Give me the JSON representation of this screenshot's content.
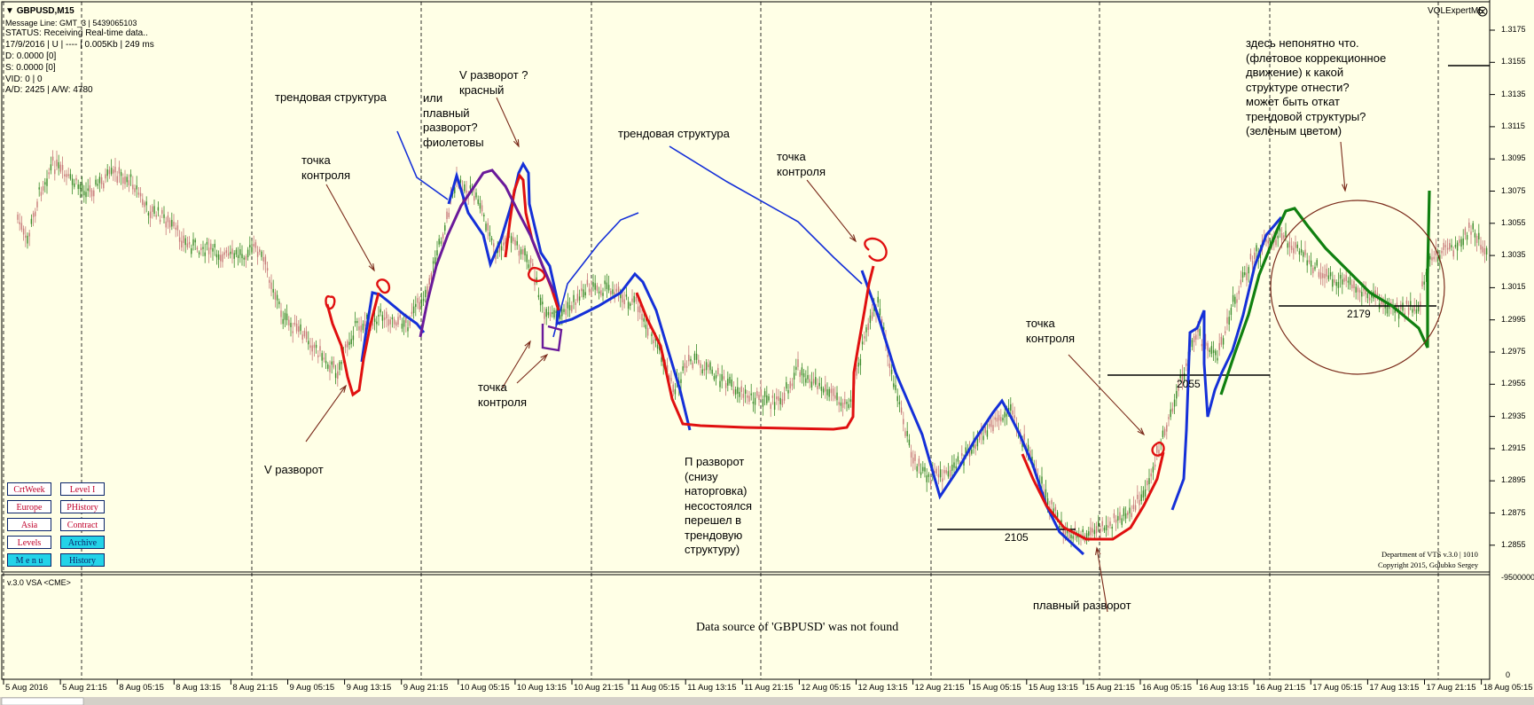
{
  "window": {
    "title": "GBPUSD,M15",
    "indicator_name": "VQLExpertME"
  },
  "info_panel": {
    "message_line": "Message Line: GMT_3 | 5439065103",
    "status": "STATUS:  Receiving Real-time data..",
    "date_line": "17/9/2016 | U | ---- | 0.005Kb | 249 ms",
    "d_line": "D: 0.0000  [0]",
    "s_line": "S: 0.0000  [0]",
    "vd_line": "VID: 0 | 0",
    "ad_line": "A/D: 2425 | A/W: 4780"
  },
  "buttons": [
    {
      "label": "CrtWeek",
      "style": "white"
    },
    {
      "label": "Level I",
      "style": "white"
    },
    {
      "label": "Europe",
      "style": "white"
    },
    {
      "label": "PHistory",
      "style": "white"
    },
    {
      "label": "Asia",
      "style": "white"
    },
    {
      "label": "Contract",
      "style": "white"
    },
    {
      "label": "Levels",
      "style": "white"
    },
    {
      "label": "Archive",
      "style": "cyan"
    },
    {
      "label": "M e n u",
      "style": "cyan"
    },
    {
      "label": "History",
      "style": "cyan"
    }
  ],
  "y_axis": {
    "ticks": [
      "1.3175",
      "1.3155",
      "1.3135",
      "1.3115",
      "1.3095",
      "1.3075",
      "1.3055",
      "1.3035",
      "1.3015",
      "1.2995",
      "1.2975",
      "1.2955",
      "1.2935",
      "1.2915",
      "1.2895",
      "1.2875",
      "1.2855"
    ],
    "sub_ticks": [
      "-9500000",
      "0"
    ]
  },
  "x_axis": {
    "ticks": [
      "5 Aug 2016",
      "5 Aug 21:15",
      "8 Aug 05:15",
      "8 Aug 13:15",
      "8 Aug 21:15",
      "9 Aug 05:15",
      "9 Aug 13:15",
      "9 Aug 21:15",
      "10 Aug 05:15",
      "10 Aug 13:15",
      "10 Aug 21:15",
      "11 Aug 05:15",
      "11 Aug 13:15",
      "11 Aug 21:15",
      "12 Aug 05:15",
      "12 Aug 13:15",
      "12 Aug 21:15",
      "15 Aug 05:15",
      "15 Aug 13:15",
      "15 Aug 21:15",
      "16 Aug 05:15",
      "16 Aug 13:15",
      "16 Aug 21:15",
      "17 Aug 05:15",
      "17 Aug 13:15",
      "17 Aug 21:15",
      "18 Aug 05:15"
    ]
  },
  "annotations": {
    "trend_structure_1": "трендовая структура",
    "or_smooth": "или\nплавный\nразворот?\nфиолетовы",
    "v_reversal_q": "V разворот ?\nкрасный",
    "trend_structure_2": "трендовая структура",
    "control_point_1": "точка\nконтроля",
    "control_point_2": "точка\nконтроля",
    "control_point_3": "точка\nконтроля",
    "control_point_4": "точка\nконтроля",
    "v_reversal": "V разворот",
    "p_reversal": "П разворот\n(снизу\nнаторговка)\nнесостоялся\nперешел в\nтрендовую\nструктуру)",
    "smooth_reversal": "плавный разворот",
    "green_note": "здесь непонятно что.\n(флетовое коррекционное\nдвижение) к какой\nструктуре отнести?\nможет быть откат\nтрендовой структуры?\n(зеленым цветом)"
  },
  "level_labels": {
    "l2105": "2105",
    "l2055": "2055",
    "l2179": "2179"
  },
  "copyright": {
    "line1": "Department of VTS  v.3.0 | 1010",
    "line2": "Copyright 2015, Golubko Sergey"
  },
  "sub_window": {
    "title": "v.3.0 VSA <CME>",
    "message": "Data source of 'GBPUSD' was not found"
  },
  "colors": {
    "background": "#ffffe6",
    "bull": "#3a8a2a",
    "bear": "#c77a7a",
    "blue": "#1530d8",
    "red": "#e01010",
    "green": "#108010",
    "purple": "#6a1a9a",
    "brown": "#7a2a1a"
  }
}
